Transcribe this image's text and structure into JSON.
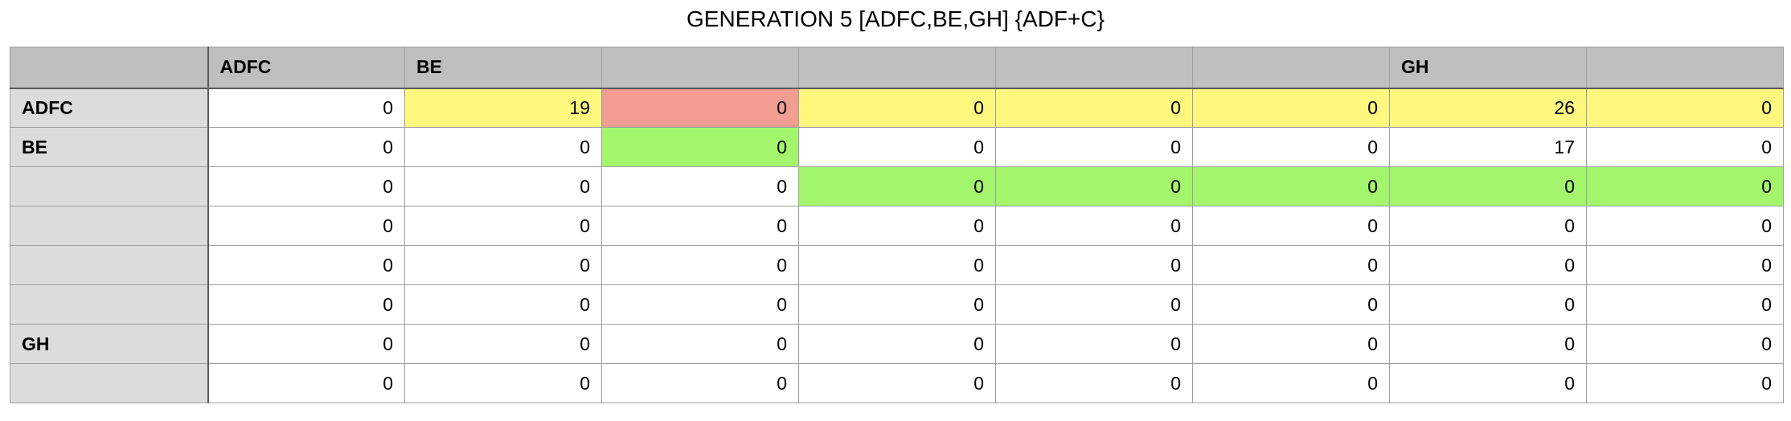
{
  "title": "GENERATION 5 [ADFC,BE,GH] {ADF+C}",
  "colors": {
    "yellow": "#fef87e",
    "red": "#f29d91",
    "green": "#a3f56b",
    "header_bg": "#bfbfbf",
    "row_header_bg": "#dcdcdc"
  },
  "columns": [
    "ADFC",
    "BE",
    "",
    "",
    "",
    "",
    "GH",
    ""
  ],
  "rows": [
    {
      "label": "ADFC",
      "cells": [
        {
          "value": "0",
          "color": ""
        },
        {
          "value": "19",
          "color": "yellow"
        },
        {
          "value": "0",
          "color": "red"
        },
        {
          "value": "0",
          "color": "yellow"
        },
        {
          "value": "0",
          "color": "yellow"
        },
        {
          "value": "0",
          "color": "yellow"
        },
        {
          "value": "26",
          "color": "yellow"
        },
        {
          "value": "0",
          "color": "yellow"
        }
      ]
    },
    {
      "label": "BE",
      "cells": [
        {
          "value": "0",
          "color": ""
        },
        {
          "value": "0",
          "color": ""
        },
        {
          "value": "0",
          "color": "green"
        },
        {
          "value": "0",
          "color": ""
        },
        {
          "value": "0",
          "color": ""
        },
        {
          "value": "0",
          "color": ""
        },
        {
          "value": "17",
          "color": ""
        },
        {
          "value": "0",
          "color": ""
        }
      ]
    },
    {
      "label": "",
      "cells": [
        {
          "value": "0",
          "color": ""
        },
        {
          "value": "0",
          "color": ""
        },
        {
          "value": "0",
          "color": ""
        },
        {
          "value": "0",
          "color": "green"
        },
        {
          "value": "0",
          "color": "green"
        },
        {
          "value": "0",
          "color": "green"
        },
        {
          "value": "0",
          "color": "green"
        },
        {
          "value": "0",
          "color": "green"
        }
      ]
    },
    {
      "label": "",
      "cells": [
        {
          "value": "0",
          "color": ""
        },
        {
          "value": "0",
          "color": ""
        },
        {
          "value": "0",
          "color": ""
        },
        {
          "value": "0",
          "color": ""
        },
        {
          "value": "0",
          "color": ""
        },
        {
          "value": "0",
          "color": ""
        },
        {
          "value": "0",
          "color": ""
        },
        {
          "value": "0",
          "color": ""
        }
      ]
    },
    {
      "label": "",
      "cells": [
        {
          "value": "0",
          "color": ""
        },
        {
          "value": "0",
          "color": ""
        },
        {
          "value": "0",
          "color": ""
        },
        {
          "value": "0",
          "color": ""
        },
        {
          "value": "0",
          "color": ""
        },
        {
          "value": "0",
          "color": ""
        },
        {
          "value": "0",
          "color": ""
        },
        {
          "value": "0",
          "color": ""
        }
      ]
    },
    {
      "label": "",
      "cells": [
        {
          "value": "0",
          "color": ""
        },
        {
          "value": "0",
          "color": ""
        },
        {
          "value": "0",
          "color": ""
        },
        {
          "value": "0",
          "color": ""
        },
        {
          "value": "0",
          "color": ""
        },
        {
          "value": "0",
          "color": ""
        },
        {
          "value": "0",
          "color": ""
        },
        {
          "value": "0",
          "color": ""
        }
      ]
    },
    {
      "label": "GH",
      "cells": [
        {
          "value": "0",
          "color": ""
        },
        {
          "value": "0",
          "color": ""
        },
        {
          "value": "0",
          "color": ""
        },
        {
          "value": "0",
          "color": ""
        },
        {
          "value": "0",
          "color": ""
        },
        {
          "value": "0",
          "color": ""
        },
        {
          "value": "0",
          "color": ""
        },
        {
          "value": "0",
          "color": ""
        }
      ]
    },
    {
      "label": "",
      "cells": [
        {
          "value": "0",
          "color": ""
        },
        {
          "value": "0",
          "color": ""
        },
        {
          "value": "0",
          "color": ""
        },
        {
          "value": "0",
          "color": ""
        },
        {
          "value": "0",
          "color": ""
        },
        {
          "value": "0",
          "color": ""
        },
        {
          "value": "0",
          "color": ""
        },
        {
          "value": "0",
          "color": ""
        }
      ]
    }
  ]
}
